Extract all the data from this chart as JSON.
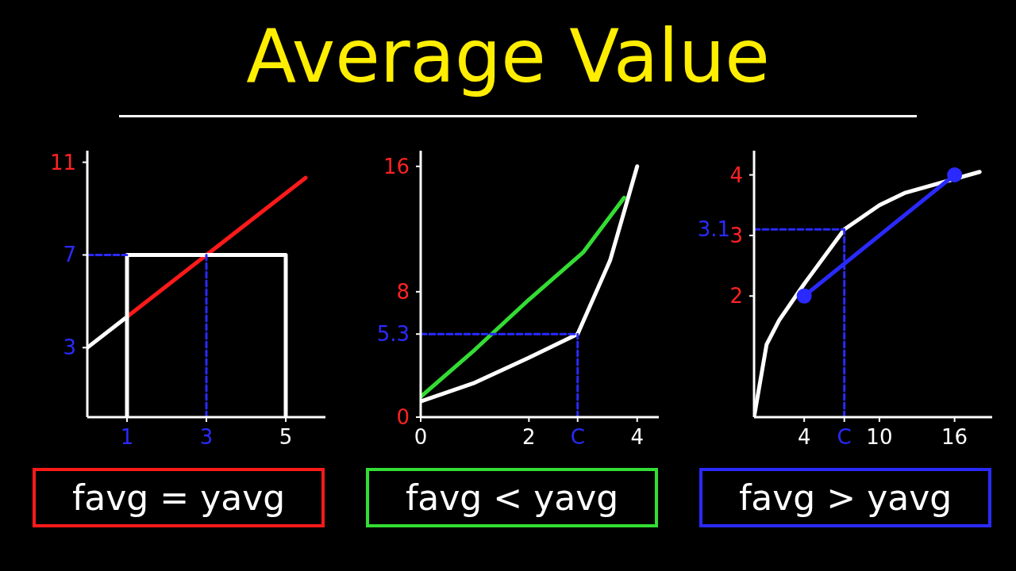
{
  "chart_data": [
    {
      "type": "line",
      "title": "Average Value",
      "xlim": [
        0,
        6
      ],
      "ylim": [
        0,
        11.5
      ],
      "xticks": [
        1,
        3,
        5
      ],
      "yticks": [
        3,
        7,
        11
      ],
      "annotations": [
        "favg = yavg"
      ],
      "series": [
        {
          "color": "#ffffff",
          "x": [
            0,
            1
          ],
          "values": [
            3,
            4.33
          ]
        },
        {
          "color": "#ff1a1a",
          "x": [
            1,
            5.5
          ],
          "values": [
            4.33,
            10.33
          ]
        },
        {
          "color": "#ffffff",
          "x": [
            1,
            1,
            5,
            5
          ],
          "values": [
            0,
            7,
            7,
            0
          ]
        },
        {
          "color": "#2a2aff",
          "line_style": "dashed",
          "x": [
            0,
            1
          ],
          "values": [
            7,
            7
          ]
        },
        {
          "color": "#2a2aff",
          "line_style": "dashed",
          "x": [
            3,
            3
          ],
          "values": [
            0,
            7
          ]
        }
      ]
    },
    {
      "type": "line",
      "xlim": [
        0,
        4.4
      ],
      "ylim": [
        0,
        17
      ],
      "xticks": [
        0,
        2,
        {
          "value": 2.9,
          "label": "C"
        },
        4
      ],
      "yticks": [
        0,
        5.3,
        8,
        16
      ],
      "annotations": [
        "favg < yavg"
      ],
      "series": [
        {
          "color": "#ffffff",
          "x": [
            0,
            1,
            2,
            2.9,
            3.5,
            4
          ],
          "values": [
            1,
            2.2,
            3.8,
            5.3,
            10,
            16
          ]
        },
        {
          "color": "#33dd33",
          "x": [
            0,
            1,
            2,
            3,
            3.76
          ],
          "values": [
            1.3,
            4.3,
            7.5,
            10.5,
            14
          ]
        },
        {
          "color": "#2a2aff",
          "line_style": "dashed",
          "x": [
            0,
            2.9
          ],
          "values": [
            5.3,
            5.3
          ]
        },
        {
          "color": "#2a2aff",
          "line_style": "dashed",
          "x": [
            2.9,
            2.9
          ],
          "values": [
            0,
            5.3
          ]
        }
      ]
    },
    {
      "type": "line",
      "xlim": [
        0,
        19
      ],
      "ylim": [
        0,
        4.4
      ],
      "xticks": [
        4,
        {
          "value": 7.2,
          "label": "C"
        },
        10,
        16
      ],
      "yticks": [
        2,
        3,
        4
      ],
      "annotations": [
        {
          "text": "3.1",
          "x": 0,
          "y": 3.1
        },
        "favg > yavg"
      ],
      "series": [
        {
          "color": "#ffffff",
          "x": [
            0,
            1,
            2,
            4,
            7.2,
            10,
            12,
            18
          ],
          "values": [
            0,
            1.2,
            1.6,
            2.2,
            3.1,
            3.5,
            3.7,
            4.05
          ]
        },
        {
          "color": "#2a2aff",
          "marker": "circle",
          "x": [
            4,
            16
          ],
          "values": [
            2,
            4
          ]
        },
        {
          "color": "#2a2aff",
          "line_style": "dashed",
          "x": [
            0,
            7.2
          ],
          "values": [
            3.1,
            3.1
          ]
        },
        {
          "color": "#2a2aff",
          "line_style": "dashed",
          "x": [
            7.2,
            7.2
          ],
          "values": [
            0,
            3.1
          ]
        }
      ]
    }
  ]
}
